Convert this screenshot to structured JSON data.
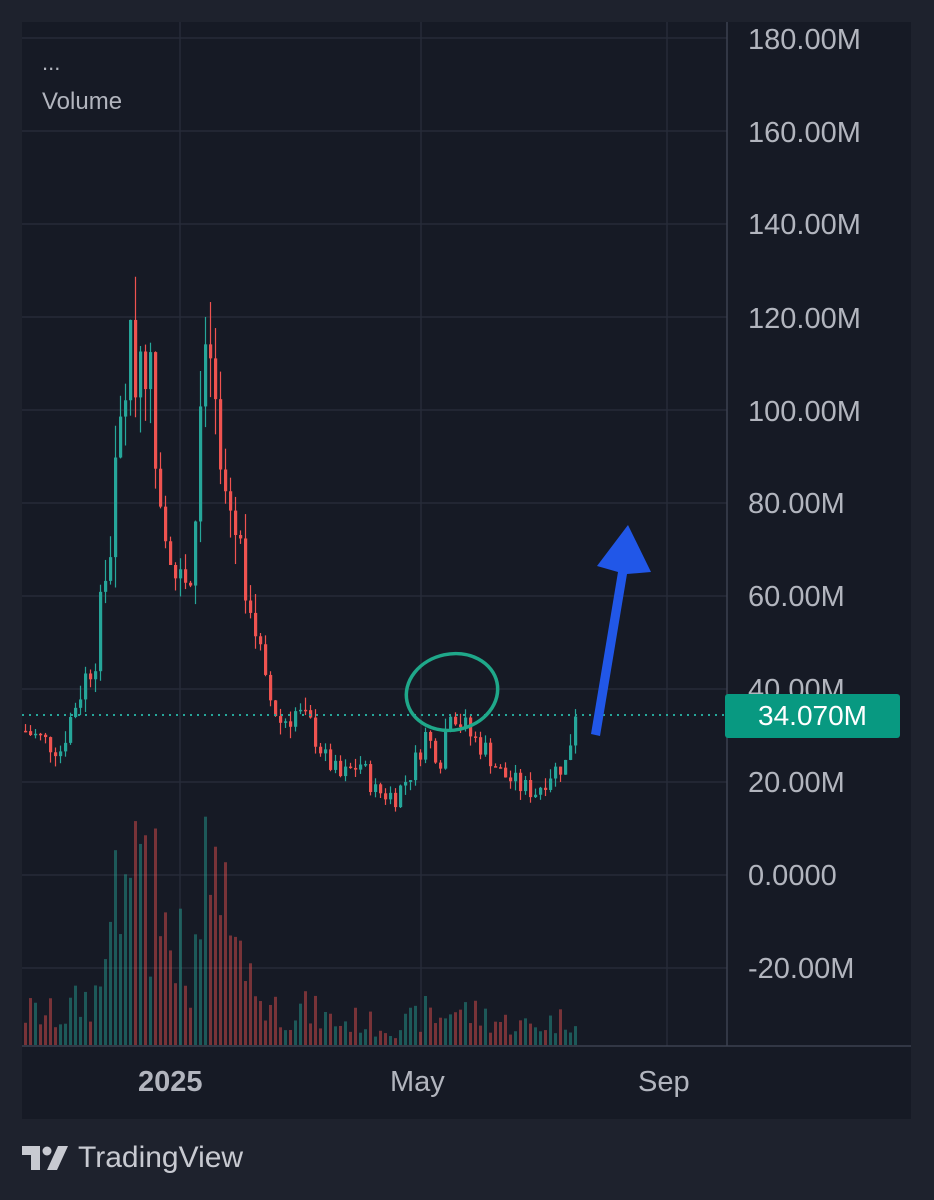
{
  "legend": {
    "dots": "...",
    "title": "Volume"
  },
  "y_axis": {
    "labels": [
      "180.00M",
      "160.00M",
      "140.00M",
      "120.00M",
      "100.00M",
      "80.00M",
      "60.00M",
      "40.00M",
      "20.00M",
      "0.0000",
      "-20.00M"
    ]
  },
  "x_axis": {
    "labels": [
      "2025",
      "May",
      "Sep"
    ]
  },
  "price_badge": "34.070M",
  "footer": {
    "brand": "TradingView"
  },
  "colors": {
    "up": "#26a69a",
    "down": "#ef5350",
    "badge": "#089981",
    "annotation_circle": "#1fa88a",
    "arrow": "#2157e8",
    "background": "#161a25"
  },
  "chart_data": {
    "type": "candlestick",
    "title": "Volume",
    "ylim": [
      -35,
      180
    ],
    "y_ticks": [
      180,
      160,
      140,
      120,
      100,
      80,
      60,
      40,
      20,
      0,
      -20
    ],
    "unit": "M",
    "last_value": 34.07,
    "x_ticks": [
      "2025",
      "May",
      "Sep"
    ],
    "grid": true,
    "trend_waypoints": [
      {
        "x": 0,
        "y": 31
      },
      {
        "x": 7,
        "y": 27
      },
      {
        "x": 10,
        "y": 37
      },
      {
        "x": 14,
        "y": 48
      },
      {
        "x": 17,
        "y": 72
      },
      {
        "x": 20,
        "y": 108
      },
      {
        "x": 24,
        "y": 115
      },
      {
        "x": 27,
        "y": 85
      },
      {
        "x": 30,
        "y": 65
      },
      {
        "x": 33,
        "y": 58
      },
      {
        "x": 35,
        "y": 100
      },
      {
        "x": 37,
        "y": 112
      },
      {
        "x": 39,
        "y": 85
      },
      {
        "x": 42,
        "y": 75
      },
      {
        "x": 45,
        "y": 60
      },
      {
        "x": 48,
        "y": 40
      },
      {
        "x": 51,
        "y": 33
      },
      {
        "x": 54,
        "y": 35
      },
      {
        "x": 57,
        "y": 32
      },
      {
        "x": 60,
        "y": 25
      },
      {
        "x": 63,
        "y": 21
      },
      {
        "x": 67,
        "y": 24
      },
      {
        "x": 70,
        "y": 18
      },
      {
        "x": 74,
        "y": 17
      },
      {
        "x": 77,
        "y": 22
      },
      {
        "x": 80,
        "y": 30
      },
      {
        "x": 83,
        "y": 25
      },
      {
        "x": 85,
        "y": 37
      },
      {
        "x": 87,
        "y": 33
      },
      {
        "x": 89,
        "y": 30
      },
      {
        "x": 92,
        "y": 27
      },
      {
        "x": 95,
        "y": 22
      },
      {
        "x": 99,
        "y": 19
      },
      {
        "x": 102,
        "y": 18
      },
      {
        "x": 105,
        "y": 22
      },
      {
        "x": 108,
        "y": 24
      },
      {
        "x": 110,
        "y": 34
      }
    ],
    "volume_scale": "relative"
  }
}
